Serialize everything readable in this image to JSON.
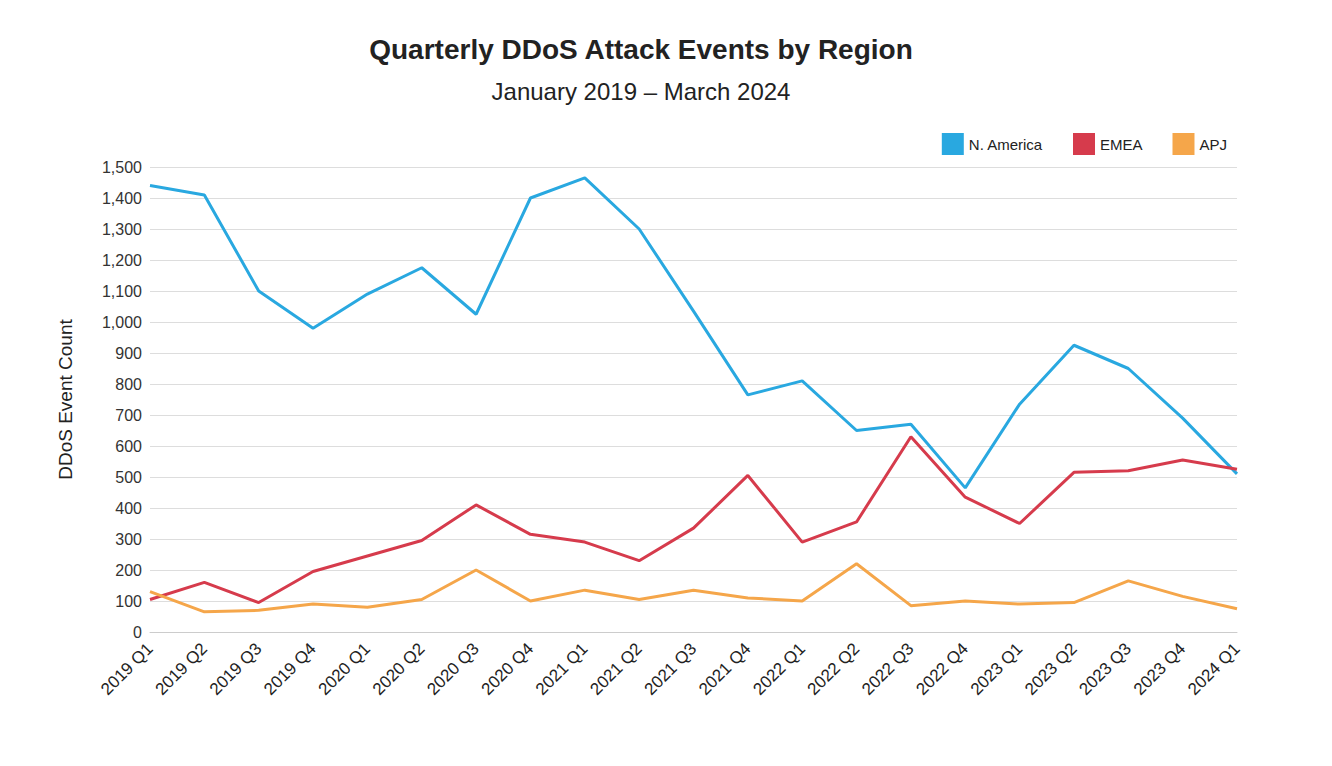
{
  "chart_data": {
    "type": "line",
    "title": "Quarterly DDoS Attack Events by Region",
    "subtitle": "January 2019 – March 2024",
    "y_label": "DDoS Event Count",
    "categories": [
      "2019 Q1",
      "2019 Q2",
      "2019 Q3",
      "2019 Q4",
      "2020 Q1",
      "2020 Q2",
      "2020 Q3",
      "2020 Q4",
      "2021 Q1",
      "2021 Q2",
      "2021 Q3",
      "2021 Q4",
      "2022 Q1",
      "2022 Q2",
      "2022 Q3",
      "2022 Q4",
      "2023 Q1",
      "2023 Q2",
      "2023 Q3",
      "2023 Q4",
      "2024 Q1"
    ],
    "series": [
      {
        "name": "N. America",
        "color": "#29a8e0",
        "values": [
          1440,
          1410,
          1100,
          980,
          1090,
          1175,
          1025,
          1400,
          1465,
          1300,
          1035,
          765,
          810,
          650,
          670,
          465,
          735,
          925,
          850,
          690,
          510
        ]
      },
      {
        "name": "EMEA",
        "color": "#d63b4c",
        "values": [
          105,
          160,
          95,
          195,
          245,
          295,
          410,
          315,
          290,
          230,
          335,
          505,
          290,
          355,
          630,
          435,
          350,
          515,
          520,
          555,
          525
        ]
      },
      {
        "name": "APJ",
        "color": "#f5a64a",
        "values": [
          130,
          65,
          70,
          90,
          80,
          105,
          200,
          100,
          135,
          105,
          135,
          110,
          100,
          220,
          85,
          100,
          90,
          95,
          165,
          115,
          75
        ]
      }
    ],
    "ylim": [
      0,
      1500
    ],
    "yticks": [
      0,
      100,
      200,
      300,
      400,
      500,
      600,
      700,
      800,
      900,
      {
        "value": 1000,
        "label": "1,000"
      },
      {
        "value": 1100,
        "label": "1,100"
      },
      {
        "value": 1200,
        "label": "1,200"
      },
      {
        "value": 1300,
        "label": "1,300"
      },
      {
        "value": 1400,
        "label": "1,400"
      },
      {
        "value": 1500,
        "label": "1,500"
      }
    ],
    "grid": true,
    "legend": "upper right",
    "marker": "none"
  }
}
